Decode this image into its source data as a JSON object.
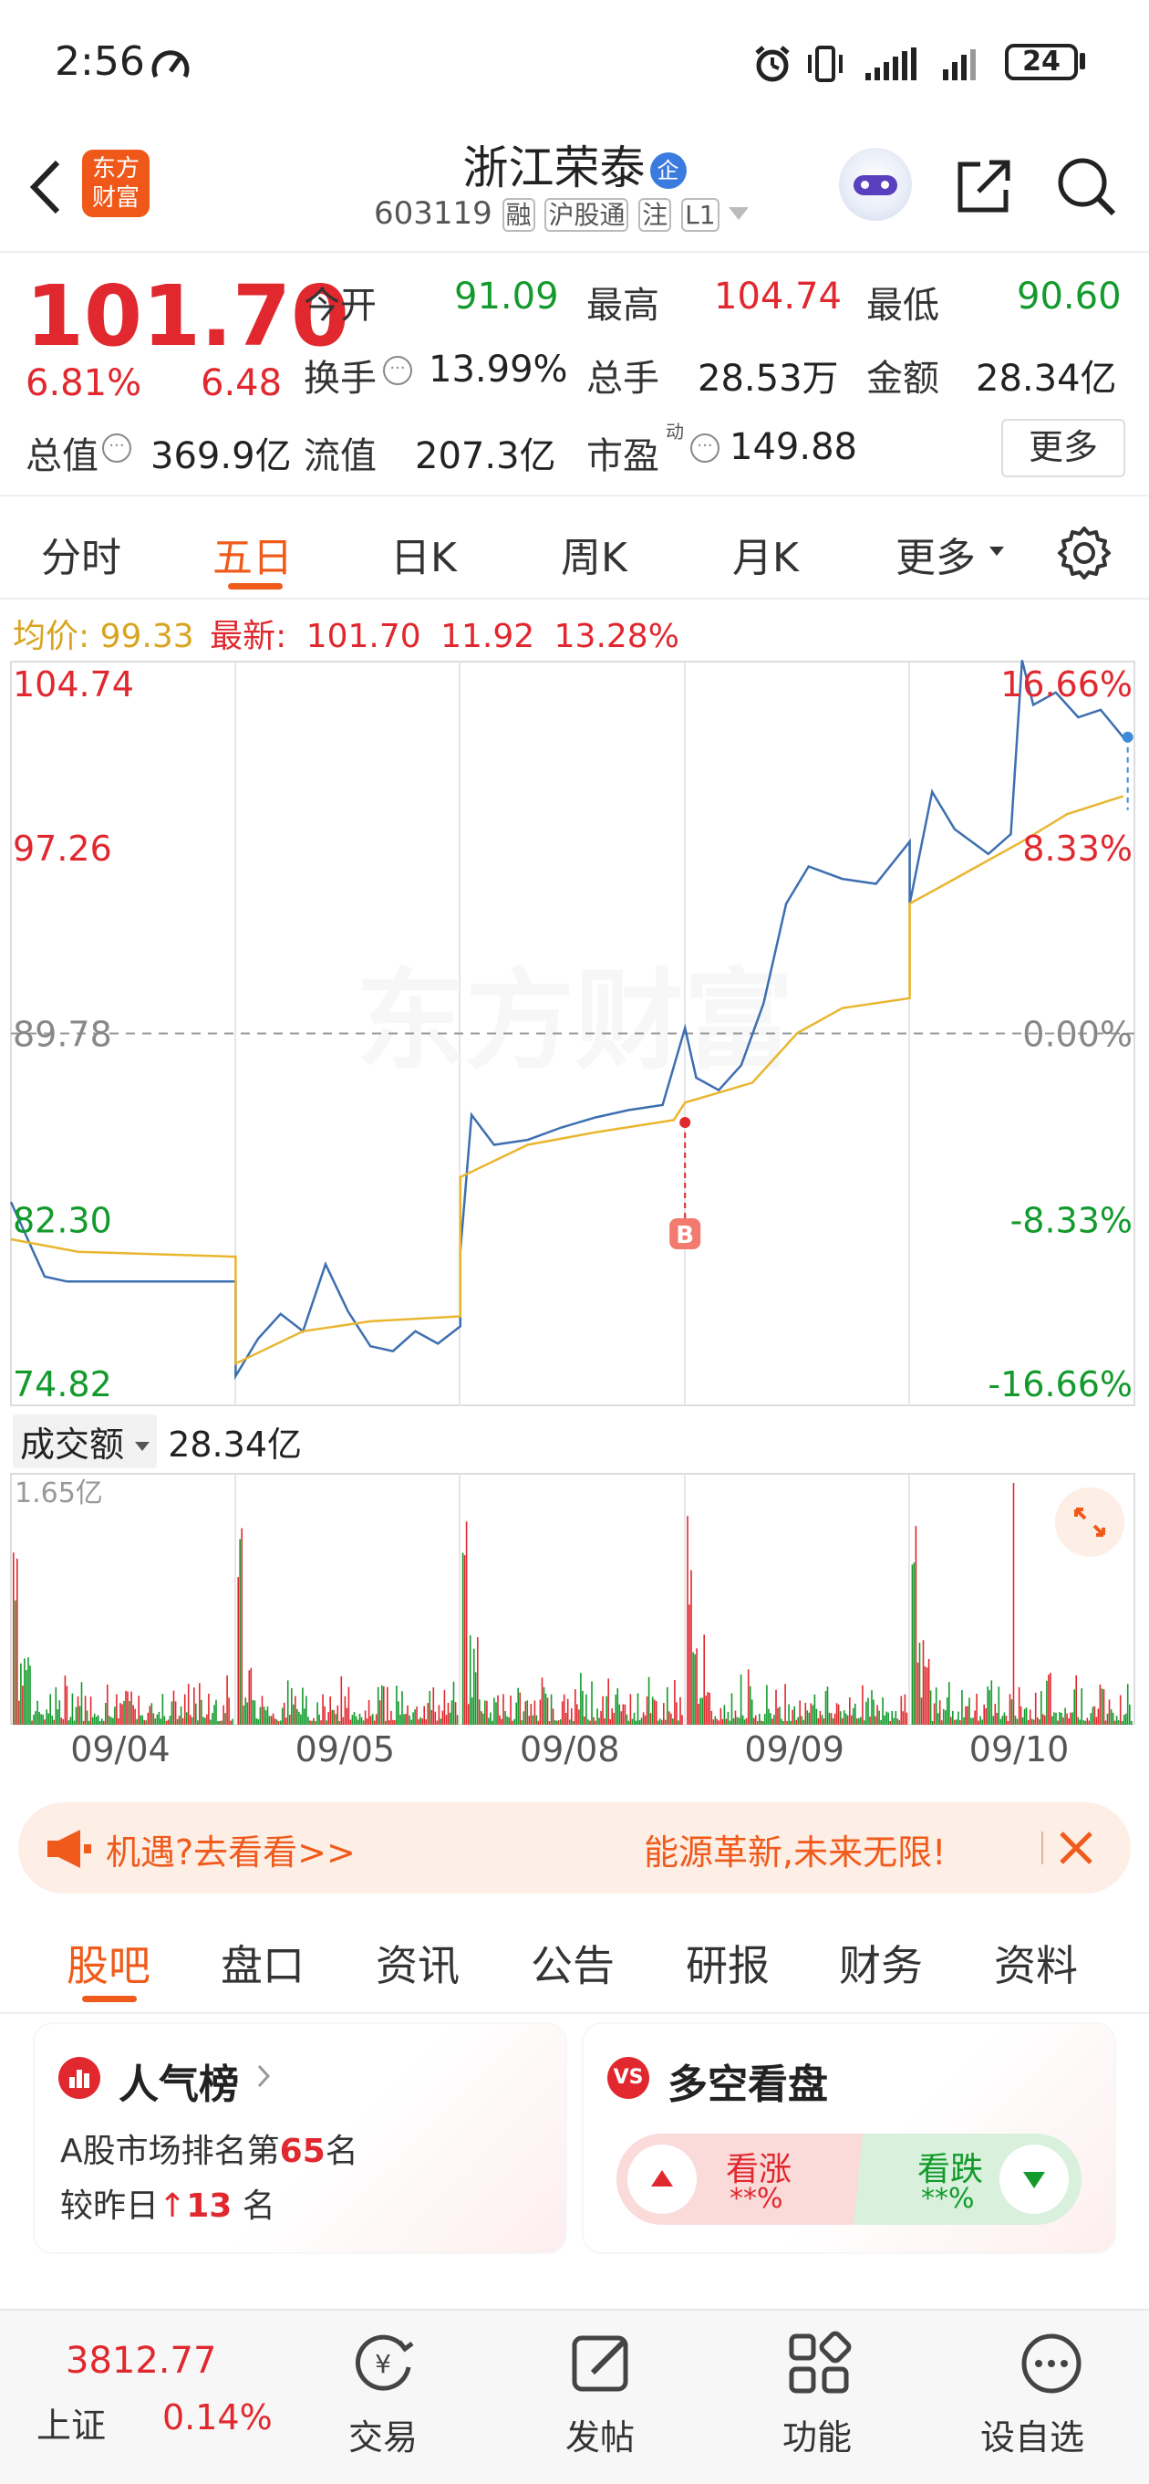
{
  "status_bar": {
    "time": "2:56",
    "battery": "24"
  },
  "header": {
    "logo_line1": "东方",
    "logo_line2": "财富",
    "stock_name": "浙江荣泰",
    "stock_badge": "企",
    "stock_code": "603119",
    "tags": [
      "融",
      "沪股通",
      "注",
      "L1"
    ]
  },
  "quote": {
    "price": "101.70",
    "change_pct": "6.81%",
    "change_amt": "6.48",
    "open_label": "今开",
    "open": "91.09",
    "high_label": "最高",
    "high": "104.74",
    "low_label": "最低",
    "low": "90.60",
    "turnover_label": "换手",
    "turnover": "13.99%",
    "volume_label": "总手",
    "volume": "28.53万",
    "amount_label": "金额",
    "amount": "28.34亿",
    "mktcap_label": "总值",
    "mktcap": "369.9亿",
    "float_label": "流值",
    "float_cap": "207.3亿",
    "pe_label": "市盈",
    "pe_sup": "动",
    "pe": "149.88",
    "more": "更多"
  },
  "chart_tabs": [
    "分时",
    "五日",
    "日K",
    "周K",
    "月K",
    "更多"
  ],
  "active_tab": "五日",
  "info_line": {
    "avg_label": "均价:",
    "avg": "99.33",
    "latest_label": "最新:",
    "latest": "101.70",
    "change_amt": "11.92",
    "change_pct": "13.28%"
  },
  "chart_data": {
    "type": "line",
    "y_left_ticks": [
      "104.74",
      "97.26",
      "89.78",
      "82.30",
      "74.82"
    ],
    "y_right_ticks": [
      "16.66%",
      "8.33%",
      "0.00%",
      "-8.33%",
      "-16.66%"
    ],
    "ylim": [
      74.82,
      104.74
    ],
    "reference_price": 89.78,
    "x_labels": [
      "09/04",
      "09/05",
      "09/08",
      "09/09",
      "09/10"
    ],
    "series": [
      {
        "values": [
          [
            0,
            83
          ],
          [
            0.05,
            82
          ],
          [
            0.1,
            81
          ],
          [
            0.15,
            80
          ],
          [
            0.25,
            79.8
          ],
          [
            0.4,
            79.8
          ],
          [
            0.6,
            79.8
          ],
          [
            1,
            79.8
          ],
          [
            1,
            76
          ],
          [
            1.1,
            77.5
          ],
          [
            1.2,
            78.5
          ],
          [
            1.3,
            77.8
          ],
          [
            1.4,
            80.5
          ],
          [
            1.5,
            78.6
          ],
          [
            1.6,
            77.2
          ],
          [
            1.7,
            77
          ],
          [
            1.8,
            77.8
          ],
          [
            1.9,
            77.3
          ],
          [
            2,
            78
          ],
          [
            2,
            81
          ],
          [
            2.05,
            86.5
          ],
          [
            2.15,
            85.3
          ],
          [
            2.3,
            85.5
          ],
          [
            2.45,
            86
          ],
          [
            2.6,
            86.4
          ],
          [
            2.75,
            86.7
          ],
          [
            2.9,
            86.9
          ],
          [
            3,
            90
          ],
          [
            3.05,
            88
          ],
          [
            3.15,
            87.5
          ],
          [
            3.25,
            88.5
          ],
          [
            3.35,
            91
          ],
          [
            3.45,
            95
          ],
          [
            3.55,
            96.5
          ],
          [
            3.7,
            96
          ],
          [
            3.85,
            95.8
          ],
          [
            4,
            97.5
          ],
          [
            4,
            95
          ],
          [
            4.1,
            99.5
          ],
          [
            4.2,
            98
          ],
          [
            4.35,
            97
          ],
          [
            4.45,
            97.8
          ],
          [
            4.5,
            104.8
          ],
          [
            4.55,
            103
          ],
          [
            4.65,
            103.5
          ],
          [
            4.75,
            102.5
          ],
          [
            4.85,
            102.8
          ],
          [
            4.95,
            101.7
          ]
        ]
      },
      {
        "values": [
          [
            0,
            81.5
          ],
          [
            0.3,
            81
          ],
          [
            1,
            80.8
          ],
          [
            1,
            76.5
          ],
          [
            1.3,
            77.8
          ],
          [
            1.6,
            78.2
          ],
          [
            2,
            78.4
          ],
          [
            2,
            84
          ],
          [
            2.3,
            85.3
          ],
          [
            2.6,
            85.8
          ],
          [
            2.95,
            86.3
          ],
          [
            3,
            87
          ],
          [
            3.3,
            87.8
          ],
          [
            3.5,
            89.8
          ],
          [
            3.7,
            90.8
          ],
          [
            4,
            91.2
          ],
          [
            4,
            95
          ],
          [
            4.2,
            96
          ],
          [
            4.5,
            97.5
          ],
          [
            4.7,
            98.6
          ],
          [
            4.95,
            99.33
          ]
        ]
      }
    ],
    "markers": [
      {
        "label": "B",
        "x": 3,
        "y": 86.2
      }
    ],
    "volume_label": "成交额",
    "volume_total": "28.34亿",
    "volume_max": "1.65亿"
  },
  "banner": {
    "left_text": "机遇?去看看>>",
    "right_text": "能源革新,未来无限!"
  },
  "bottom_tabs": [
    "股吧",
    "盘口",
    "资讯",
    "公告",
    "研报",
    "财务",
    "资料"
  ],
  "popularity": {
    "title": "人气榜",
    "rank_prefix": "A股市场排名第",
    "rank": "65",
    "rank_suffix": "名",
    "change_prefix": "较昨日",
    "change": "13",
    "change_suffix": "名"
  },
  "sentiment": {
    "title": "多空看盘",
    "up_label": "看涨",
    "up_value": "**%",
    "down_label": "看跌",
    "down_value": "**%"
  },
  "bottom_nav": {
    "index_value": "3812.77",
    "index_name": "上证",
    "index_change": "0.14%",
    "items": [
      "交易",
      "发帖",
      "功能",
      "设自选"
    ]
  },
  "colors": {
    "up": "#e0282e",
    "down": "#139a2c",
    "accent": "#f05a1a",
    "price_line": "#3d6fb0",
    "avg_line": "#e9b630"
  }
}
